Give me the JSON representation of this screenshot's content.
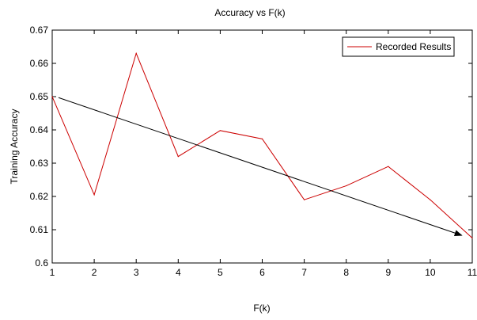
{
  "chart_data": {
    "type": "line",
    "title": "Accuracy vs F(k)",
    "xlabel": "F(k)",
    "ylabel": "Training Accuracy",
    "xlim": [
      1,
      11
    ],
    "ylim": [
      0.6,
      0.67
    ],
    "x_ticks": [
      1,
      2,
      3,
      4,
      5,
      6,
      7,
      8,
      9,
      10,
      11
    ],
    "x_tick_labels": [
      "1",
      "2",
      "3",
      "4",
      "5",
      "6",
      "7",
      "8",
      "9",
      "10",
      "11"
    ],
    "y_ticks": [
      0.6,
      0.61,
      0.62,
      0.63,
      0.64,
      0.65,
      0.66,
      0.67
    ],
    "y_tick_labels": [
      "0.6",
      "0.61",
      "0.62",
      "0.63",
      "0.64",
      "0.65",
      "0.66",
      "0.67"
    ],
    "grid": false,
    "legend_position": "top-right",
    "series": [
      {
        "name": "Recorded Results",
        "color": "#cc0000",
        "x": [
          1,
          2,
          3,
          4,
          5,
          6,
          7,
          8,
          9,
          10,
          11
        ],
        "y": [
          0.65,
          0.6205,
          0.663,
          0.632,
          0.6398,
          0.6373,
          0.619,
          0.6232,
          0.629,
          0.619,
          0.6075
        ]
      }
    ],
    "annotations": [
      {
        "type": "arrow",
        "color": "#000000",
        "from": [
          1.15,
          0.6497
        ],
        "to": [
          10.75,
          0.6083
        ]
      }
    ]
  }
}
